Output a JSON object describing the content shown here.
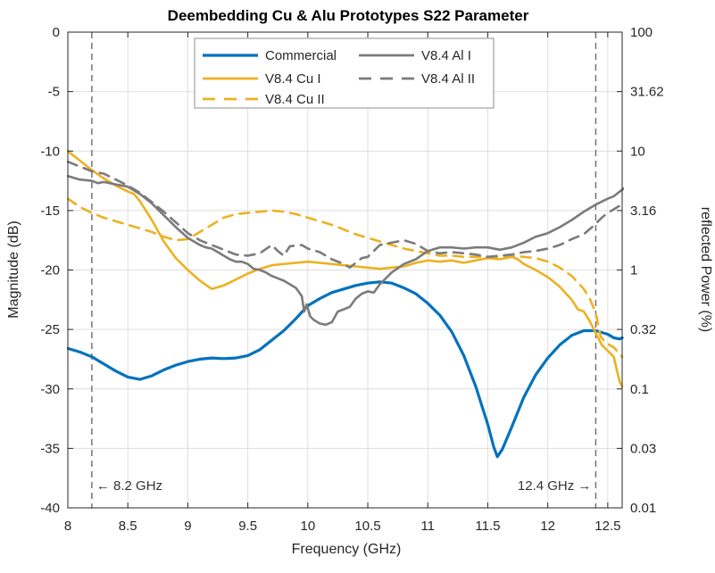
{
  "window": {
    "background": "#ffffff"
  },
  "chart_data": {
    "type": "line",
    "title": "Deembedding Cu & Alu Prototypes S22 Parameter",
    "xlabel": "Frequency (GHz)",
    "ylabel_left": "Magnitude (dB)",
    "ylabel_right": "reflected Power (%)",
    "xlim": [
      8,
      12.62
    ],
    "ylim_left": [
      -40,
      0
    ],
    "y_axis_right_scale": "log-percent",
    "grid": true,
    "legend_position": "top-center",
    "legend_columns": 2,
    "x_ticks": [
      8,
      8.5,
      9,
      9.5,
      10,
      10.5,
      11,
      11.5,
      12,
      12.5
    ],
    "x_tick_labels": [
      "8",
      "8.5",
      "9",
      "9.5",
      "10",
      "10.5",
      "11",
      "11.5",
      "12",
      "12.5"
    ],
    "y_ticks_left": [
      0,
      -5,
      -10,
      -15,
      -20,
      -25,
      -30,
      -35,
      -40
    ],
    "y_tick_labels_left": [
      "0",
      "-5",
      "-10",
      "-15",
      "-20",
      "-25",
      "-30",
      "-35",
      "-40"
    ],
    "y_tick_labels_right": [
      "100",
      "31.62",
      "10",
      "3.16",
      "1",
      "0.32",
      "0.1",
      "0.03",
      "0.01"
    ],
    "colors": {
      "blue": "#0072BD",
      "yellow": "#EDB120",
      "gray": "#7B7B7B",
      "grid": "#dedede",
      "axis": "#262626",
      "annotation": "#6b6b6b",
      "annotation_text": "#333333",
      "legend_border": "#8c8c8c"
    },
    "vlines": [
      {
        "x": 8.2,
        "label": "← 8.2 GHz",
        "align": "left"
      },
      {
        "x": 12.4,
        "label": "12.4 GHz →",
        "align": "right"
      }
    ],
    "series": [
      {
        "id": "commercial",
        "name": "Commercial",
        "color": "#0072BD",
        "style": "solid",
        "points": [
          [
            8.0,
            -26.6
          ],
          [
            8.1,
            -26.9
          ],
          [
            8.2,
            -27.3
          ],
          [
            8.3,
            -27.9
          ],
          [
            8.4,
            -28.5
          ],
          [
            8.5,
            -29.0
          ],
          [
            8.6,
            -29.2
          ],
          [
            8.7,
            -28.9
          ],
          [
            8.8,
            -28.4
          ],
          [
            8.9,
            -28.0
          ],
          [
            9.0,
            -27.7
          ],
          [
            9.1,
            -27.5
          ],
          [
            9.2,
            -27.4
          ],
          [
            9.3,
            -27.45
          ],
          [
            9.4,
            -27.4
          ],
          [
            9.5,
            -27.2
          ],
          [
            9.6,
            -26.7
          ],
          [
            9.7,
            -25.9
          ],
          [
            9.8,
            -25.1
          ],
          [
            9.9,
            -24.1
          ],
          [
            10.0,
            -23.0
          ],
          [
            10.1,
            -22.4
          ],
          [
            10.2,
            -21.9
          ],
          [
            10.3,
            -21.6
          ],
          [
            10.4,
            -21.3
          ],
          [
            10.5,
            -21.1
          ],
          [
            10.6,
            -21.0
          ],
          [
            10.7,
            -21.1
          ],
          [
            10.8,
            -21.5
          ],
          [
            10.9,
            -22.0
          ],
          [
            11.0,
            -22.8
          ],
          [
            11.1,
            -23.8
          ],
          [
            11.2,
            -25.2
          ],
          [
            11.3,
            -27.2
          ],
          [
            11.4,
            -29.8
          ],
          [
            11.5,
            -33.0
          ],
          [
            11.55,
            -34.9
          ],
          [
            11.58,
            -35.7
          ],
          [
            11.62,
            -35.1
          ],
          [
            11.7,
            -33.2
          ],
          [
            11.8,
            -30.7
          ],
          [
            11.9,
            -28.8
          ],
          [
            12.0,
            -27.4
          ],
          [
            12.1,
            -26.3
          ],
          [
            12.2,
            -25.5
          ],
          [
            12.3,
            -25.1
          ],
          [
            12.4,
            -25.1
          ],
          [
            12.5,
            -25.4
          ],
          [
            12.55,
            -25.7
          ],
          [
            12.6,
            -25.8
          ],
          [
            12.62,
            -25.7
          ]
        ]
      },
      {
        "id": "cu1",
        "name": "V8.4 Cu I",
        "color": "#EDB120",
        "style": "solid",
        "points": [
          [
            8.0,
            -10.0
          ],
          [
            8.1,
            -10.8
          ],
          [
            8.2,
            -11.6
          ],
          [
            8.3,
            -12.3
          ],
          [
            8.4,
            -12.9
          ],
          [
            8.5,
            -13.4
          ],
          [
            8.55,
            -13.6
          ],
          [
            8.6,
            -14.2
          ],
          [
            8.7,
            -15.8
          ],
          [
            8.8,
            -17.6
          ],
          [
            8.9,
            -19.0
          ],
          [
            9.0,
            -20.0
          ],
          [
            9.1,
            -20.9
          ],
          [
            9.2,
            -21.6
          ],
          [
            9.3,
            -21.3
          ],
          [
            9.4,
            -20.8
          ],
          [
            9.5,
            -20.3
          ],
          [
            9.6,
            -19.9
          ],
          [
            9.7,
            -19.6
          ],
          [
            9.8,
            -19.5
          ],
          [
            9.9,
            -19.4
          ],
          [
            10.0,
            -19.3
          ],
          [
            10.1,
            -19.4
          ],
          [
            10.2,
            -19.5
          ],
          [
            10.3,
            -19.6
          ],
          [
            10.4,
            -19.7
          ],
          [
            10.5,
            -19.8
          ],
          [
            10.6,
            -19.9
          ],
          [
            10.7,
            -19.8
          ],
          [
            10.8,
            -19.7
          ],
          [
            10.9,
            -19.4
          ],
          [
            11.0,
            -19.2
          ],
          [
            11.1,
            -19.3
          ],
          [
            11.2,
            -19.2
          ],
          [
            11.3,
            -19.4
          ],
          [
            11.4,
            -19.2
          ],
          [
            11.5,
            -19.0
          ],
          [
            11.6,
            -19.1
          ],
          [
            11.7,
            -18.9
          ],
          [
            11.75,
            -19.1
          ],
          [
            11.8,
            -19.5
          ],
          [
            11.9,
            -20.0
          ],
          [
            12.0,
            -20.6
          ],
          [
            12.1,
            -21.4
          ],
          [
            12.2,
            -22.5
          ],
          [
            12.25,
            -23.3
          ],
          [
            12.3,
            -23.5
          ],
          [
            12.35,
            -24.3
          ],
          [
            12.4,
            -25.3
          ],
          [
            12.45,
            -26.3
          ],
          [
            12.5,
            -26.8
          ],
          [
            12.55,
            -27.3
          ],
          [
            12.58,
            -28.6
          ],
          [
            12.6,
            -29.4
          ],
          [
            12.62,
            -29.8
          ]
        ]
      },
      {
        "id": "cu2",
        "name": "V8.4 Cu II",
        "color": "#EDB120",
        "style": "dashed",
        "points": [
          [
            8.0,
            -14.0
          ],
          [
            8.1,
            -14.7
          ],
          [
            8.2,
            -15.2
          ],
          [
            8.3,
            -15.6
          ],
          [
            8.4,
            -15.9
          ],
          [
            8.5,
            -16.2
          ],
          [
            8.6,
            -16.5
          ],
          [
            8.7,
            -16.8
          ],
          [
            8.8,
            -17.2
          ],
          [
            8.9,
            -17.5
          ],
          [
            9.0,
            -17.4
          ],
          [
            9.1,
            -16.8
          ],
          [
            9.2,
            -16.2
          ],
          [
            9.3,
            -15.6
          ],
          [
            9.4,
            -15.3
          ],
          [
            9.5,
            -15.2
          ],
          [
            9.6,
            -15.1
          ],
          [
            9.7,
            -15.0
          ],
          [
            9.8,
            -15.1
          ],
          [
            9.9,
            -15.3
          ],
          [
            10.0,
            -15.6
          ],
          [
            10.1,
            -15.9
          ],
          [
            10.2,
            -16.2
          ],
          [
            10.3,
            -16.6
          ],
          [
            10.4,
            -17.0
          ],
          [
            10.5,
            -17.3
          ],
          [
            10.6,
            -17.6
          ],
          [
            10.7,
            -17.9
          ],
          [
            10.8,
            -18.2
          ],
          [
            10.9,
            -18.4
          ],
          [
            11.0,
            -18.6
          ],
          [
            11.1,
            -18.8
          ],
          [
            11.2,
            -18.8
          ],
          [
            11.3,
            -18.9
          ],
          [
            11.4,
            -18.9
          ],
          [
            11.5,
            -18.9
          ],
          [
            11.6,
            -18.9
          ],
          [
            11.7,
            -18.8
          ],
          [
            11.8,
            -18.9
          ],
          [
            11.9,
            -19.0
          ],
          [
            12.0,
            -19.3
          ],
          [
            12.1,
            -19.8
          ],
          [
            12.2,
            -20.5
          ],
          [
            12.3,
            -21.6
          ],
          [
            12.35,
            -22.4
          ],
          [
            12.4,
            -23.6
          ],
          [
            12.44,
            -25.6
          ],
          [
            12.48,
            -26.1
          ],
          [
            12.55,
            -26.5
          ],
          [
            12.62,
            -27.3
          ]
        ]
      },
      {
        "id": "al1",
        "name": "V8.4 Al I",
        "color": "#7B7B7B",
        "style": "solid",
        "points": [
          [
            8.0,
            -12.1
          ],
          [
            8.1,
            -12.4
          ],
          [
            8.2,
            -12.5
          ],
          [
            8.25,
            -12.7
          ],
          [
            8.3,
            -12.6
          ],
          [
            8.4,
            -12.8
          ],
          [
            8.5,
            -13.0
          ],
          [
            8.6,
            -13.6
          ],
          [
            8.7,
            -14.4
          ],
          [
            8.8,
            -15.4
          ],
          [
            8.9,
            -16.4
          ],
          [
            9.0,
            -17.3
          ],
          [
            9.05,
            -17.6
          ],
          [
            9.1,
            -17.9
          ],
          [
            9.15,
            -18.1
          ],
          [
            9.2,
            -18.2
          ],
          [
            9.25,
            -18.5
          ],
          [
            9.3,
            -18.8
          ],
          [
            9.35,
            -19.1
          ],
          [
            9.4,
            -19.3
          ],
          [
            9.45,
            -19.3
          ],
          [
            9.5,
            -19.5
          ],
          [
            9.55,
            -19.9
          ],
          [
            9.6,
            -20.0
          ],
          [
            9.65,
            -20.2
          ],
          [
            9.7,
            -20.5
          ],
          [
            9.75,
            -20.7
          ],
          [
            9.8,
            -20.9
          ],
          [
            9.85,
            -21.2
          ],
          [
            9.9,
            -21.5
          ],
          [
            9.95,
            -22.2
          ],
          [
            9.97,
            -23.5
          ],
          [
            9.99,
            -22.9
          ],
          [
            10.02,
            -23.9
          ],
          [
            10.05,
            -24.2
          ],
          [
            10.1,
            -24.5
          ],
          [
            10.15,
            -24.6
          ],
          [
            10.2,
            -24.4
          ],
          [
            10.25,
            -23.5
          ],
          [
            10.3,
            -23.3
          ],
          [
            10.35,
            -23.1
          ],
          [
            10.4,
            -22.4
          ],
          [
            10.45,
            -22.0
          ],
          [
            10.5,
            -21.8
          ],
          [
            10.55,
            -21.9
          ],
          [
            10.6,
            -21.2
          ],
          [
            10.7,
            -20.2
          ],
          [
            10.8,
            -19.5
          ],
          [
            10.9,
            -19.1
          ],
          [
            11.0,
            -18.4
          ],
          [
            11.1,
            -18.1
          ],
          [
            11.2,
            -18.1
          ],
          [
            11.3,
            -18.2
          ],
          [
            11.4,
            -18.1
          ],
          [
            11.5,
            -18.1
          ],
          [
            11.6,
            -18.3
          ],
          [
            11.7,
            -18.1
          ],
          [
            11.8,
            -17.7
          ],
          [
            11.9,
            -17.2
          ],
          [
            12.0,
            -16.9
          ],
          [
            12.1,
            -16.4
          ],
          [
            12.2,
            -15.8
          ],
          [
            12.3,
            -15.1
          ],
          [
            12.4,
            -14.5
          ],
          [
            12.5,
            -14.0
          ],
          [
            12.55,
            -13.8
          ],
          [
            12.6,
            -13.4
          ],
          [
            12.64,
            -13.1
          ]
        ]
      },
      {
        "id": "al2",
        "name": "V8.4 Al II",
        "color": "#7B7B7B",
        "style": "dashed",
        "points": [
          [
            8.0,
            -10.9
          ],
          [
            8.1,
            -11.3
          ],
          [
            8.2,
            -11.7
          ],
          [
            8.3,
            -11.9
          ],
          [
            8.4,
            -12.4
          ],
          [
            8.5,
            -12.9
          ],
          [
            8.6,
            -13.5
          ],
          [
            8.7,
            -14.3
          ],
          [
            8.8,
            -15.1
          ],
          [
            8.9,
            -16.0
          ],
          [
            9.0,
            -16.9
          ],
          [
            9.1,
            -17.5
          ],
          [
            9.2,
            -17.9
          ],
          [
            9.3,
            -18.3
          ],
          [
            9.4,
            -18.7
          ],
          [
            9.5,
            -18.8
          ],
          [
            9.6,
            -18.6
          ],
          [
            9.7,
            -17.9
          ],
          [
            9.75,
            -18.4
          ],
          [
            9.8,
            -18.8
          ],
          [
            9.85,
            -18.0
          ],
          [
            9.95,
            -17.9
          ],
          [
            10.0,
            -18.2
          ],
          [
            10.1,
            -18.5
          ],
          [
            10.2,
            -19.1
          ],
          [
            10.3,
            -19.5
          ],
          [
            10.35,
            -19.8
          ],
          [
            10.45,
            -19.0
          ],
          [
            10.5,
            -18.9
          ],
          [
            10.6,
            -17.9
          ],
          [
            10.7,
            -17.7
          ],
          [
            10.8,
            -17.5
          ],
          [
            10.9,
            -17.8
          ],
          [
            11.0,
            -18.4
          ],
          [
            11.1,
            -18.6
          ],
          [
            11.2,
            -18.5
          ],
          [
            11.3,
            -18.6
          ],
          [
            11.4,
            -18.7
          ],
          [
            11.5,
            -18.9
          ],
          [
            11.6,
            -18.8
          ],
          [
            11.7,
            -18.7
          ],
          [
            11.8,
            -18.5
          ],
          [
            11.9,
            -18.4
          ],
          [
            12.0,
            -18.2
          ],
          [
            12.1,
            -17.9
          ],
          [
            12.2,
            -17.4
          ],
          [
            12.3,
            -17.0
          ],
          [
            12.38,
            -16.3
          ],
          [
            12.45,
            -15.6
          ],
          [
            12.5,
            -15.2
          ],
          [
            12.55,
            -14.9
          ],
          [
            12.6,
            -14.6
          ],
          [
            12.64,
            -14.3
          ]
        ]
      }
    ]
  }
}
